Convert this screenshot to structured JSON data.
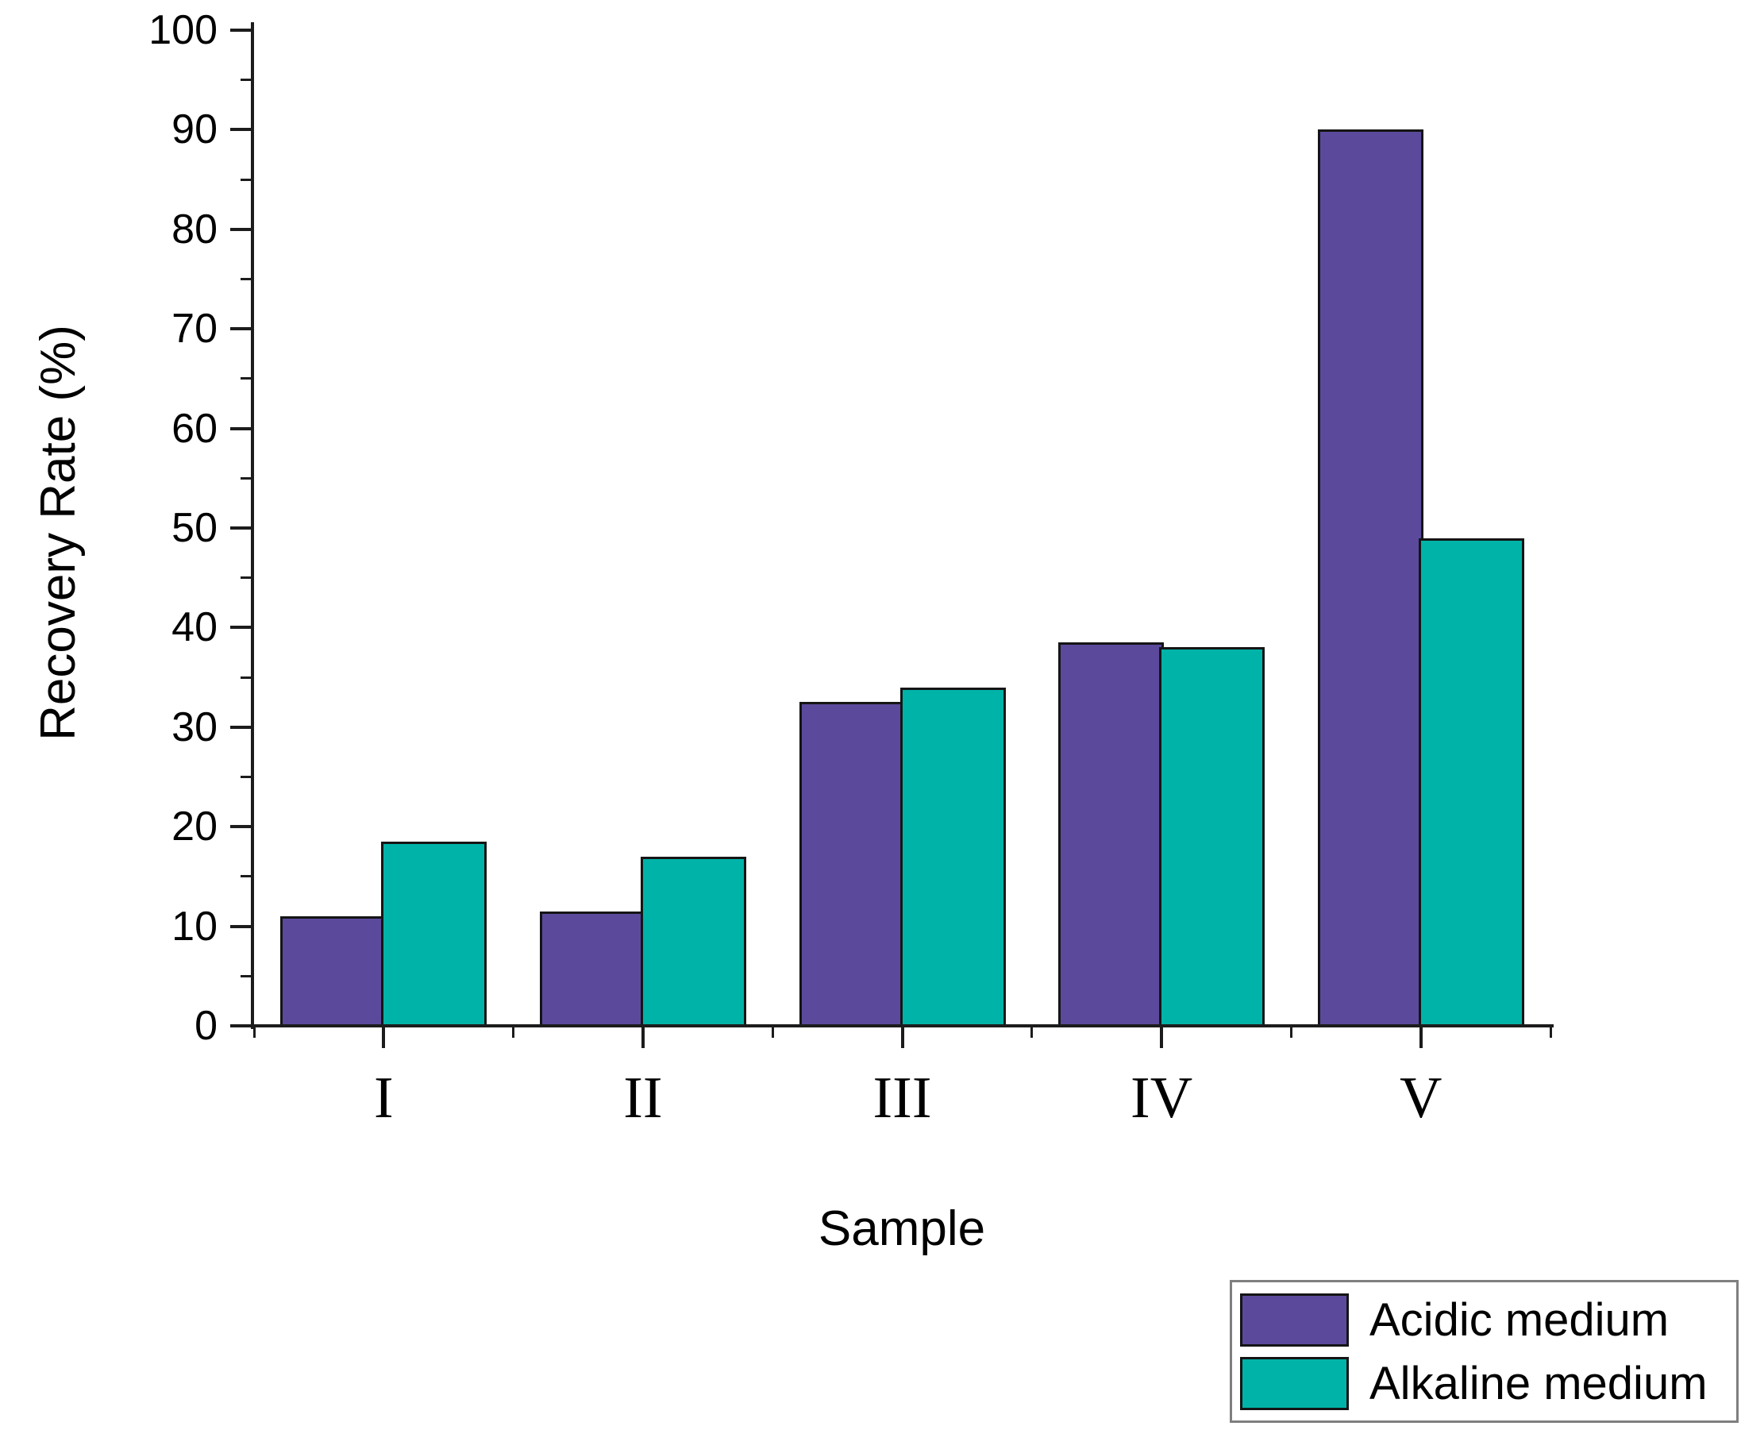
{
  "chart_data": {
    "type": "bar",
    "categories": [
      "I",
      "II",
      "III",
      "IV",
      "V"
    ],
    "series": [
      {
        "name": "Acidic medium",
        "color": "#5b4a9c",
        "values": [
          11,
          11.5,
          32.5,
          38.5,
          90
        ]
      },
      {
        "name": "Alkaline medium",
        "color": "#00b3a8",
        "values": [
          18.5,
          17,
          34,
          38,
          49
        ]
      }
    ],
    "title": "",
    "xlabel": "Sample",
    "ylabel": "Recovery Rate (%)",
    "ylim": [
      0,
      100
    ],
    "y_major_step": 10,
    "y_minor_step": 5,
    "grid": false,
    "legend_position": "bottom-right",
    "bar_edge_color": "#151515",
    "axis_color": "#1c1c1c"
  }
}
